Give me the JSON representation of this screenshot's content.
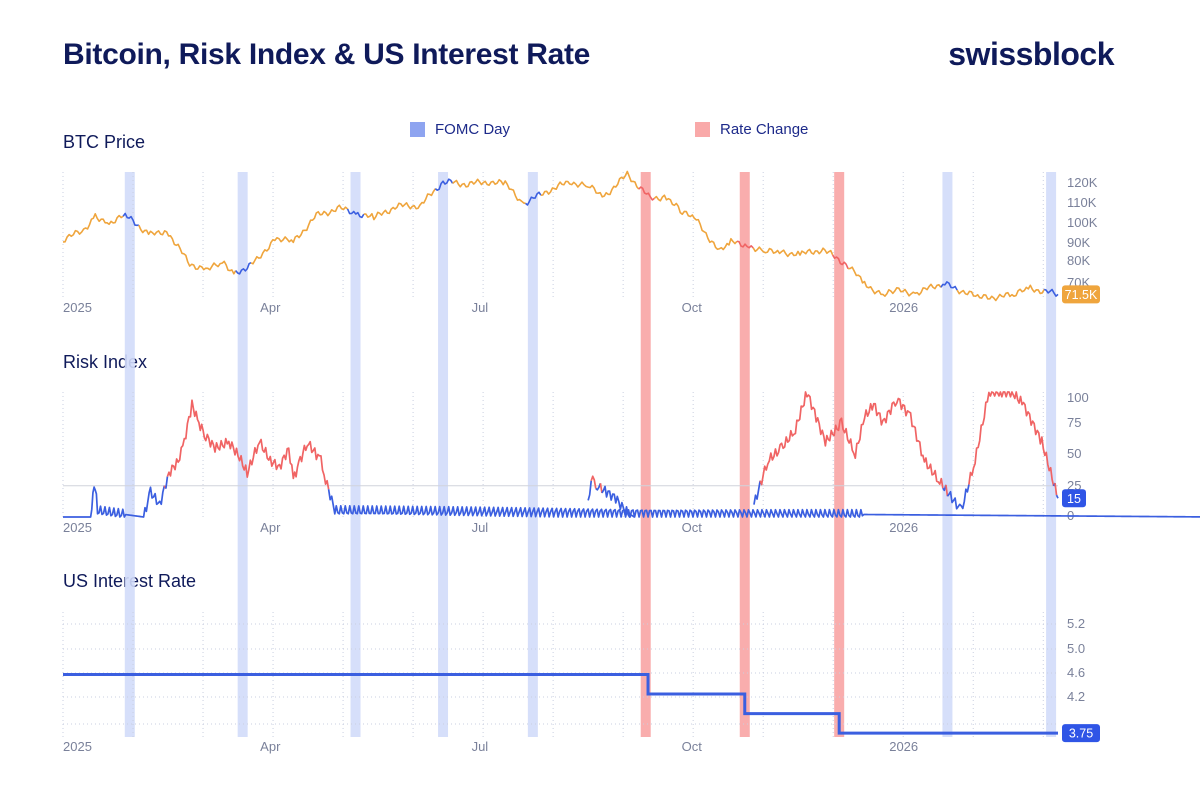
{
  "title": "Bitcoin, Risk Index & US Interest Rate",
  "brand": "swissblock",
  "legend": [
    {
      "label": "FOMC Day",
      "color": "#8ea4f0"
    },
    {
      "label": "Rate Change",
      "color": "#f9a9a9"
    }
  ],
  "colors": {
    "navy": "#0f1a5a",
    "btc_orange": "#efa53d",
    "blue": "#3b5fe0",
    "red": "#f06464",
    "fomc_band": "#d2dbfa",
    "rate_band": "#f9a9a9",
    "grid": "#c9cfe0",
    "axis_text": "#7a819a"
  },
  "chart_data": [
    {
      "type": "line",
      "title": "BTC Price",
      "x_ticks": [
        "2025",
        "Apr",
        "Jul",
        "Oct",
        "2026"
      ],
      "y_ticks": [
        "120K",
        "110K",
        "100K",
        "90K",
        "80K",
        "70K"
      ],
      "ylim": [
        70000,
        122000
      ],
      "x": [
        0,
        9,
        14,
        20,
        27,
        38,
        45,
        55,
        62,
        70,
        75,
        85,
        92,
        100,
        110,
        120,
        128,
        135,
        145,
        155,
        165,
        175,
        185,
        192,
        200,
        210,
        220,
        228,
        235,
        245,
        255,
        262,
        268,
        275,
        285,
        290,
        297,
        305,
        312,
        320,
        330,
        340,
        348,
        356,
        362,
        370,
        382,
        398,
        412,
        420,
        432
      ],
      "values": [
        94000,
        98000,
        104000,
        101000,
        104000,
        96000,
        98000,
        84000,
        82000,
        84000,
        80000,
        86000,
        95000,
        93000,
        104000,
        107000,
        105000,
        103000,
        108000,
        108000,
        118000,
        117000,
        118000,
        117000,
        109000,
        114000,
        118000,
        116000,
        112000,
        121000,
        111000,
        112000,
        106000,
        102000,
        89000,
        93000,
        92000,
        89000,
        89000,
        88000,
        90000,
        84000,
        76000,
        71000,
        73000,
        72000,
        76000,
        70000,
        71000,
        74000,
        71500
      ],
      "last_label": "71.5K",
      "grid": true
    },
    {
      "type": "line",
      "title": "Risk Index",
      "x_ticks": [
        "2025",
        "Apr",
        "Jul",
        "Oct",
        "2026"
      ],
      "y_ticks": [
        "100",
        "75",
        "50",
        "25",
        "0"
      ],
      "ylim": [
        0,
        100
      ],
      "threshold": 25,
      "x": [
        0,
        12,
        13,
        14,
        15,
        35,
        38,
        42,
        46,
        50,
        52,
        56,
        59,
        62,
        66,
        72,
        76,
        80,
        84,
        86,
        90,
        94,
        98,
        100,
        103,
        106,
        110,
        112,
        114,
        118,
        500
      ],
      "values": [
        0,
        0,
        18,
        25,
        5,
        0,
        20,
        10,
        35,
        45,
        55,
        90,
        75,
        65,
        55,
        60,
        50,
        35,
        55,
        58,
        45,
        40,
        55,
        30,
        45,
        60,
        50,
        45,
        30,
        5,
        0
      ],
      "segments": [
        {
          "x": [
            228,
            230,
            232,
            236,
            240,
            244,
            248
          ],
          "values": [
            15,
            30,
            25,
            20,
            15,
            5,
            0
          ]
        },
        {
          "x": [
            300,
            306,
            312,
            318,
            323,
            327,
            331,
            338,
            344,
            348,
            352,
            356,
            362,
            368,
            374,
            380,
            384,
            390,
            396,
            402,
            407,
            412,
            417,
            425,
            432
          ],
          "values": [
            10,
            45,
            55,
            70,
            100,
            80,
            60,
            75,
            50,
            80,
            90,
            75,
            95,
            80,
            45,
            30,
            20,
            5,
            45,
            100,
            100,
            100,
            90,
            60,
            15
          ]
        }
      ],
      "last_label": "15",
      "grid": true
    },
    {
      "type": "line",
      "title": "US Interest Rate",
      "x_ticks": [
        "2025",
        "Apr",
        "Jul",
        "Oct",
        "2026"
      ],
      "y_ticks": [
        "5.2",
        "5.0",
        "4.6",
        "4.2"
      ],
      "ylim": [
        3.7,
        5.3
      ],
      "x": [
        0,
        254,
        254,
        296,
        296,
        337,
        337,
        432
      ],
      "values": [
        4.5,
        4.5,
        4.25,
        4.25,
        4.0,
        4.0,
        3.75,
        3.75
      ],
      "last_label": "3.75",
      "grid": true
    }
  ],
  "fomc_days": [
    29,
    78,
    127,
    165,
    204,
    253,
    296,
    337,
    384,
    429
  ],
  "rate_changes": [
    253,
    296,
    337
  ],
  "x_tick_days": [
    0,
    90,
    181,
    273,
    365
  ]
}
